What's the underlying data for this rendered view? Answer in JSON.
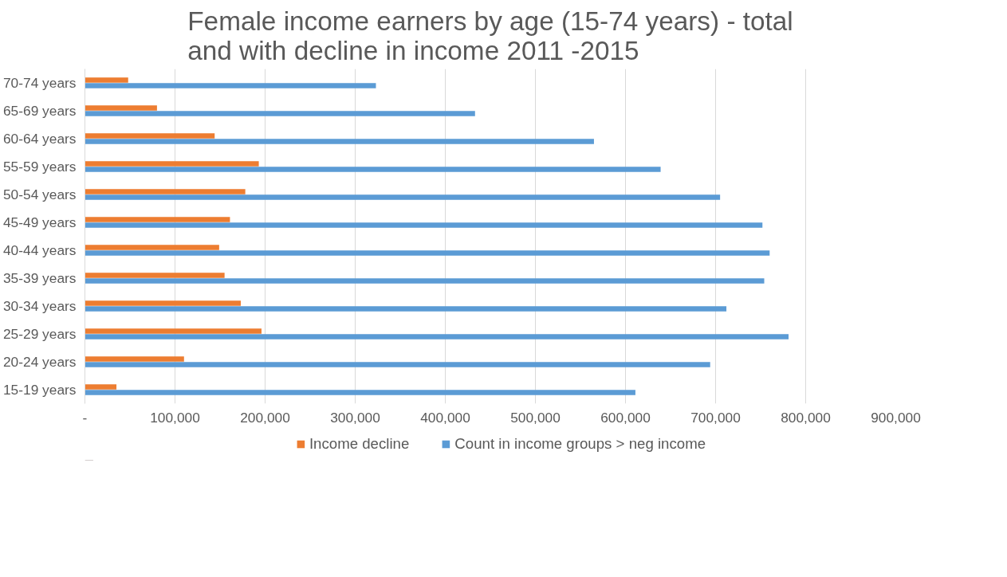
{
  "chart_data": {
    "type": "bar",
    "orientation": "horizontal",
    "title": "Female income earners by age (15-74 years) - total and with decline in income 2011 -2015",
    "categories": [
      "70-74 years",
      "65-69 years",
      "60-64 years",
      "55-59 years",
      "50-54 years",
      "45-49 years",
      "40-44 years",
      "35-39 years",
      "30-34 years",
      "25-29 years",
      "20-24 years",
      "15-19 years"
    ],
    "series": [
      {
        "name": "Income decline",
        "color": "#ed7d31",
        "values": [
          48000,
          80000,
          144000,
          193000,
          178000,
          161000,
          149000,
          155000,
          173000,
          196000,
          110000,
          35000
        ]
      },
      {
        "name": "Count in income groups > neg income",
        "color": "#5b9bd5",
        "values": [
          323000,
          433000,
          565000,
          639000,
          705000,
          752000,
          760000,
          754000,
          712000,
          781000,
          694000,
          611000
        ]
      }
    ],
    "xlim": [
      0,
      900000
    ],
    "xticks": [
      {
        "value": 0,
        "label": "-"
      },
      {
        "value": 100000,
        "label": "100,000"
      },
      {
        "value": 200000,
        "label": "200,000"
      },
      {
        "value": 300000,
        "label": "300,000"
      },
      {
        "value": 400000,
        "label": "400,000"
      },
      {
        "value": 500000,
        "label": "500,000"
      },
      {
        "value": 600000,
        "label": "600,000"
      },
      {
        "value": 700000,
        "label": "700,000"
      },
      {
        "value": 800000,
        "label": "800,000"
      },
      {
        "value": 900000,
        "label": "900,000"
      }
    ],
    "grid": "x",
    "legend": "bottom"
  }
}
